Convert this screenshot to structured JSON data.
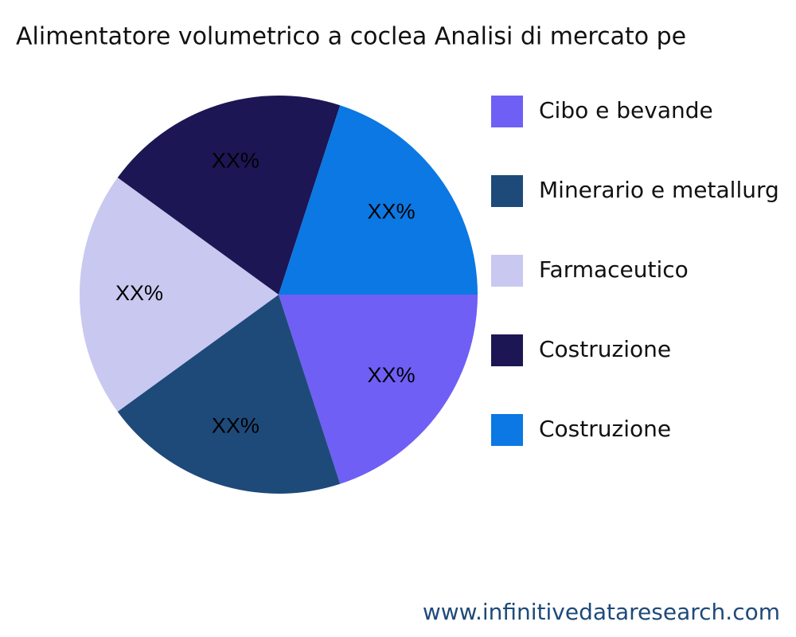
{
  "chart_data": {
    "type": "pie",
    "title": "Alimentatore volumetrico a coclea Analisi di mercato pe",
    "categories": [
      "Cibo e bevande",
      "Minerario e metallurg",
      "Farmaceutico",
      "Costruzione",
      "Costruzione"
    ],
    "values": [
      20,
      20,
      20,
      20,
      20
    ],
    "value_labels": [
      "XX%",
      "XX%",
      "XX%",
      "XX%",
      "XX%"
    ],
    "colors": [
      "#6f5ff5",
      "#1e4a7a",
      "#c8c8f0",
      "#1c1654",
      "#0b78e3"
    ],
    "legend": "right"
  },
  "footer": "www.infinitivedataresearch.com"
}
